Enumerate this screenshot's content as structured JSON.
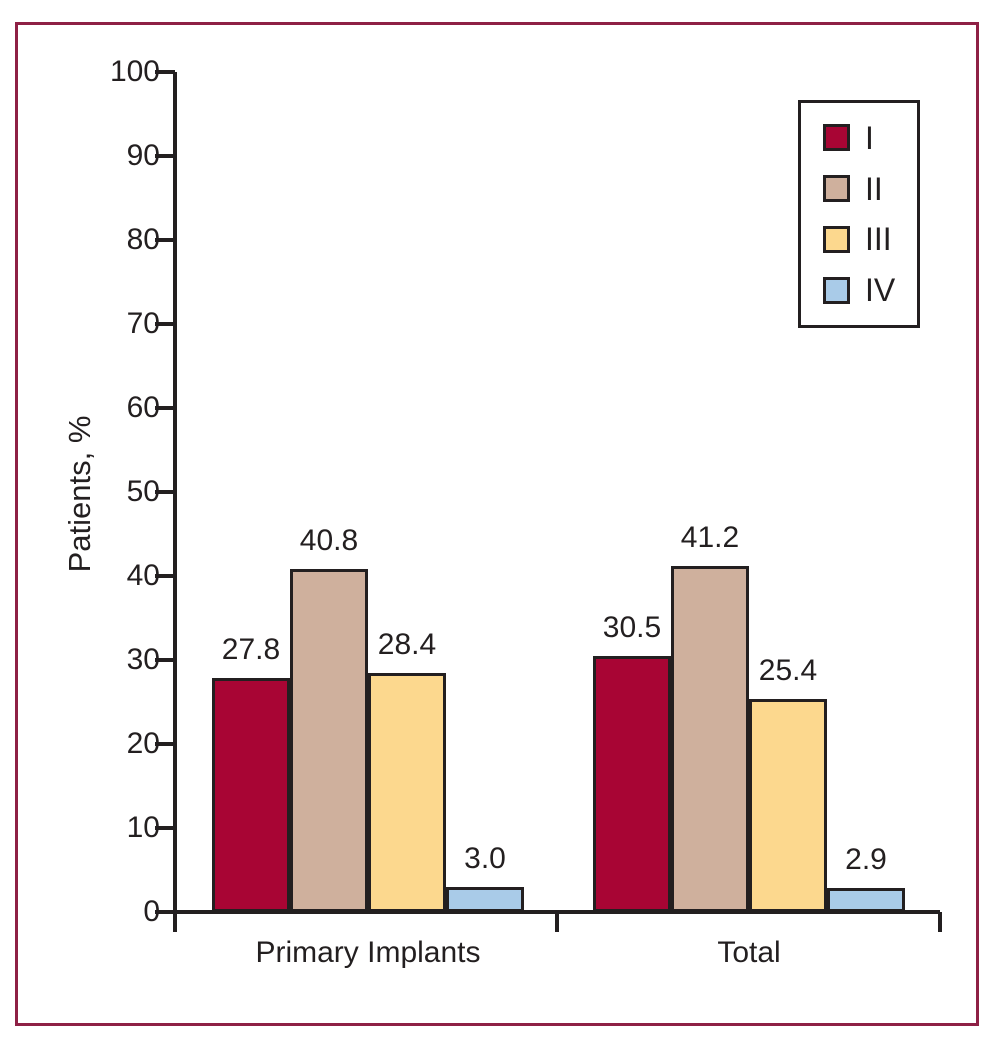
{
  "figure": {
    "frame_color": "#8E2045",
    "background_color": "#FFFFFF",
    "axis_color": "#231F20",
    "text_color": "#231F20"
  },
  "chart_data": {
    "type": "bar",
    "title": "",
    "xlabel": "",
    "ylabel": "Patients, %",
    "ylim": [
      0,
      100
    ],
    "ytick_step": 10,
    "ytick_labels": [
      "0",
      "10",
      "20",
      "30",
      "40",
      "50",
      "60",
      "70",
      "80",
      "90",
      "100"
    ],
    "categories": [
      "Primary Implants",
      "Total"
    ],
    "series": [
      {
        "name": "I",
        "color": "#A80534",
        "values": [
          27.8,
          30.5
        ]
      },
      {
        "name": "II",
        "color": "#CFB09D",
        "values": [
          40.8,
          41.2
        ]
      },
      {
        "name": "III",
        "color": "#FCD88E",
        "values": [
          28.4,
          25.4
        ]
      },
      {
        "name": "IV",
        "color": "#A9CBE8",
        "values": [
          3.0,
          2.9
        ]
      }
    ],
    "value_labels": [
      [
        "27.8",
        "40.8",
        "28.4",
        "3.0"
      ],
      [
        "30.5",
        "41.2",
        "25.4",
        "2.9"
      ]
    ],
    "legend": {
      "position": "top-right",
      "entries": [
        "I",
        "II",
        "III",
        "IV"
      ]
    },
    "grid": false
  }
}
